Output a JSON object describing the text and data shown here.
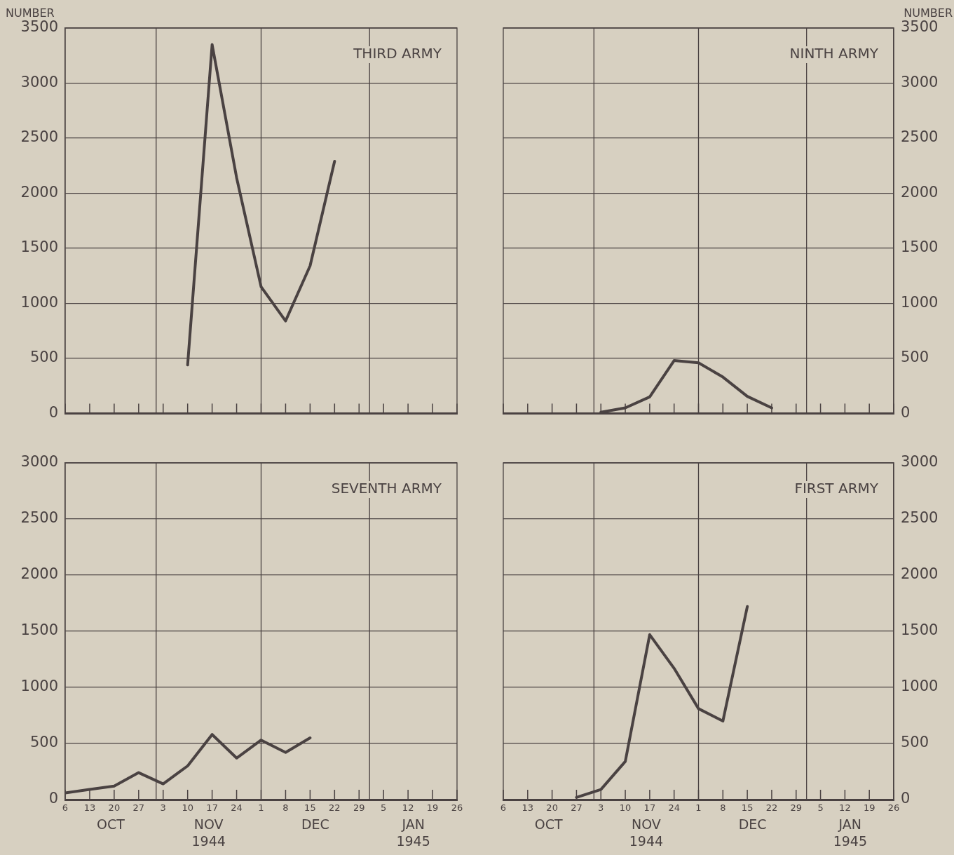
{
  "chart_data": [
    {
      "type": "line",
      "title": "THIRD ARMY",
      "ylabel": "NUMBER",
      "xlim": [
        "1944-10-06",
        "1945-01-26"
      ],
      "xticks": [
        {
          "value": "1944-10-06",
          "label": null
        },
        {
          "value": "1944-10-13",
          "label": null
        },
        {
          "value": "1944-10-20",
          "label": null
        },
        {
          "value": "1944-10-27",
          "label": null
        },
        {
          "value": "1944-11-03",
          "label": null
        },
        {
          "value": "1944-11-10",
          "label": null
        },
        {
          "value": "1944-11-17",
          "label": null
        },
        {
          "value": "1944-11-24",
          "label": null
        },
        {
          "value": "1944-12-01",
          "label": null
        },
        {
          "value": "1944-12-08",
          "label": null
        },
        {
          "value": "1944-12-15",
          "label": null
        },
        {
          "value": "1944-12-22",
          "label": null
        },
        {
          "value": "1944-12-29",
          "label": null
        },
        {
          "value": "1945-01-05",
          "label": null
        },
        {
          "value": "1945-01-12",
          "label": null
        },
        {
          "value": "1945-01-19",
          "label": null
        },
        {
          "value": "1945-01-26",
          "label": null
        }
      ],
      "ylim": [
        0,
        3500
      ],
      "yticks": [
        0,
        500,
        1000,
        1500,
        2000,
        2500,
        3000,
        3500
      ],
      "grid": "y",
      "tick_labels": "y",
      "ref_lines": [
        {
          "axis": "x",
          "value": "1944-11-01",
          "color": "#4a4242"
        },
        {
          "axis": "x",
          "value": "1944-12-01",
          "color": "#4a4242"
        },
        {
          "axis": "x",
          "value": "1945-01-01",
          "color": "#4a4242"
        }
      ],
      "series": [
        {
          "color": "#4a4242",
          "x": [
            "1944-11-10",
            "1944-11-17",
            "1944-11-24",
            "1944-12-01",
            "1944-12-08",
            "1944-12-15",
            "1944-12-22"
          ],
          "values": [
            440,
            3350,
            2140,
            1150,
            840,
            1340,
            2290
          ]
        }
      ]
    },
    {
      "type": "line",
      "title": "NINTH ARMY",
      "y2label": "NUMBER",
      "xlim": [
        "1944-10-06",
        "1945-01-26"
      ],
      "xticks": [
        {
          "value": "1944-10-06",
          "label": null
        },
        {
          "value": "1944-10-13",
          "label": null
        },
        {
          "value": "1944-10-20",
          "label": null
        },
        {
          "value": "1944-10-27",
          "label": null
        },
        {
          "value": "1944-11-03",
          "label": null
        },
        {
          "value": "1944-11-10",
          "label": null
        },
        {
          "value": "1944-11-17",
          "label": null
        },
        {
          "value": "1944-11-24",
          "label": null
        },
        {
          "value": "1944-12-01",
          "label": null
        },
        {
          "value": "1944-12-08",
          "label": null
        },
        {
          "value": "1944-12-15",
          "label": null
        },
        {
          "value": "1944-12-22",
          "label": null
        },
        {
          "value": "1944-12-29",
          "label": null
        },
        {
          "value": "1945-01-05",
          "label": null
        },
        {
          "value": "1945-01-12",
          "label": null
        },
        {
          "value": "1945-01-19",
          "label": null
        },
        {
          "value": "1945-01-26",
          "label": null
        }
      ],
      "y2lim": [
        0,
        3500
      ],
      "y2ticks": [
        0,
        500,
        1000,
        1500,
        2000,
        2500,
        3000,
        3500
      ],
      "grid": "y",
      "tick_labels": "y",
      "ref_lines": [
        {
          "axis": "x",
          "value": "1944-11-01",
          "color": "#4a4242"
        },
        {
          "axis": "x",
          "value": "1944-12-01",
          "color": "#4a4242"
        },
        {
          "axis": "x",
          "value": "1945-01-01",
          "color": "#4a4242"
        }
      ],
      "series": [
        {
          "color": "#4a4242",
          "axis": "y2",
          "x": [
            "1944-11-03",
            "1944-11-10",
            "1944-11-17",
            "1944-11-24",
            "1944-12-01",
            "1944-12-08",
            "1944-12-15",
            "1944-12-22"
          ],
          "values": [
            10,
            50,
            150,
            480,
            460,
            330,
            155,
            50
          ]
        }
      ]
    },
    {
      "type": "line",
      "title": "SEVENTH ARMY",
      "xlim": [
        "1944-10-06",
        "1945-01-26"
      ],
      "xticks": [
        {
          "value": "1944-10-06",
          "label": "6"
        },
        {
          "value": "1944-10-13",
          "label": "13"
        },
        {
          "value": "1944-10-20",
          "label": "20"
        },
        {
          "value": "1944-10-27",
          "label": "27"
        },
        {
          "value": "1944-11-03",
          "label": "3"
        },
        {
          "value": "1944-11-10",
          "label": "10"
        },
        {
          "value": "1944-11-17",
          "label": "17"
        },
        {
          "value": "1944-11-24",
          "label": "24"
        },
        {
          "value": "1944-12-01",
          "label": "1"
        },
        {
          "value": "1944-12-08",
          "label": "8"
        },
        {
          "value": "1944-12-15",
          "label": "15"
        },
        {
          "value": "1944-12-22",
          "label": "22"
        },
        {
          "value": "1944-12-29",
          "label": "29"
        },
        {
          "value": "1945-01-05",
          "label": "5"
        },
        {
          "value": "1945-01-12",
          "label": "12"
        },
        {
          "value": "1945-01-19",
          "label": "19"
        },
        {
          "value": "1945-01-26",
          "label": "26"
        }
      ],
      "ylim": [
        0,
        3000
      ],
      "yticks": [
        0,
        500,
        1000,
        1500,
        2000,
        2500,
        3000
      ],
      "grid": "y",
      "ref_lines": [
        {
          "axis": "x",
          "value": "1944-11-01",
          "color": "#4a4242"
        },
        {
          "axis": "x",
          "value": "1944-12-01",
          "color": "#4a4242"
        },
        {
          "axis": "x",
          "value": "1945-01-01",
          "color": "#4a4242"
        }
      ],
      "annotations": [
        "OCT",
        "NOV\n1944",
        "DEC",
        "JAN\n1945"
      ],
      "series": [
        {
          "color": "#4a4242",
          "x": [
            "1944-10-06",
            "1944-10-13",
            "1944-10-20",
            "1944-10-27",
            "1944-11-03",
            "1944-11-10",
            "1944-11-17",
            "1944-11-24",
            "1944-12-01",
            "1944-12-08",
            "1944-12-15"
          ],
          "values": [
            60,
            90,
            120,
            240,
            140,
            300,
            580,
            370,
            530,
            420,
            550
          ]
        }
      ]
    },
    {
      "type": "line",
      "title": "FIRST ARMY",
      "xlim": [
        "1944-10-06",
        "1945-01-26"
      ],
      "xticks": [
        {
          "value": "1944-10-06",
          "label": "6"
        },
        {
          "value": "1944-10-13",
          "label": "13"
        },
        {
          "value": "1944-10-20",
          "label": "20"
        },
        {
          "value": "1944-10-27",
          "label": "27"
        },
        {
          "value": "1944-11-03",
          "label": "3"
        },
        {
          "value": "1944-11-10",
          "label": "10"
        },
        {
          "value": "1944-11-17",
          "label": "17"
        },
        {
          "value": "1944-11-24",
          "label": "24"
        },
        {
          "value": "1944-12-01",
          "label": "1"
        },
        {
          "value": "1944-12-08",
          "label": "8"
        },
        {
          "value": "1944-12-15",
          "label": "15"
        },
        {
          "value": "1944-12-22",
          "label": "22"
        },
        {
          "value": "1944-12-29",
          "label": "29"
        },
        {
          "value": "1945-01-05",
          "label": "5"
        },
        {
          "value": "1945-01-12",
          "label": "12"
        },
        {
          "value": "1945-01-19",
          "label": "19"
        },
        {
          "value": "1945-01-26",
          "label": "26"
        }
      ],
      "y2lim": [
        0,
        3000
      ],
      "y2ticks": [
        0,
        500,
        1000,
        1500,
        2000,
        2500,
        3000
      ],
      "grid": "y",
      "ref_lines": [
        {
          "axis": "x",
          "value": "1944-11-01",
          "color": "#4a4242"
        },
        {
          "axis": "x",
          "value": "1944-12-01",
          "color": "#4a4242"
        },
        {
          "axis": "x",
          "value": "1945-01-01",
          "color": "#4a4242"
        }
      ],
      "annotations": [
        "OCT",
        "NOV\n1944",
        "DEC",
        "JAN\n1945"
      ],
      "series": [
        {
          "color": "#4a4242",
          "axis": "y2",
          "x": [
            "1944-10-27",
            "1944-11-03",
            "1944-11-10",
            "1944-11-17",
            "1944-11-24",
            "1944-12-01",
            "1944-12-08",
            "1944-12-15"
          ],
          "values": [
            20,
            90,
            340,
            1470,
            1170,
            810,
            700,
            1720
          ]
        }
      ]
    }
  ]
}
